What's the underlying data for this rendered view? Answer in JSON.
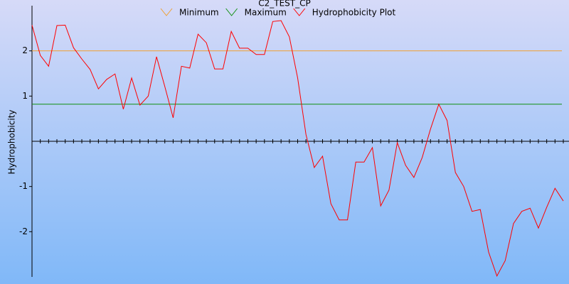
{
  "chart_data": {
    "type": "line",
    "title": "C2_TEST_CP",
    "y_label": "Hydrophobicity",
    "ylim": [
      -3,
      3
    ],
    "yticks": [
      -2,
      -1,
      1,
      2
    ],
    "reference_lines": [
      {
        "name": "Minimum",
        "color": "#f0a030",
        "value": 2
      },
      {
        "name": "Maximum",
        "color": "#109010",
        "value": 0.82
      }
    ],
    "series": [
      {
        "name": "Hydrophobicity Plot",
        "color": "#ff0000",
        "values": [
          2.57,
          1.9,
          1.66,
          2.56,
          2.57,
          2.07,
          1.82,
          1.59,
          1.16,
          1.37,
          1.49,
          0.71,
          1.4,
          0.8,
          1.0,
          1.87,
          1.21,
          0.52,
          1.66,
          1.62,
          2.37,
          2.18,
          1.6,
          1.6,
          2.43,
          2.06,
          2.06,
          1.92,
          1.92,
          2.65,
          2.67,
          2.31,
          1.4,
          0.15,
          -0.58,
          -0.33,
          -1.38,
          -1.74,
          -1.74,
          -0.46,
          -0.46,
          -0.14,
          -1.43,
          -1.08,
          -0.03,
          -0.53,
          -0.8,
          -0.36,
          0.27,
          0.82,
          0.46,
          -0.69,
          -1.0,
          -1.55,
          -1.51,
          -2.45,
          -2.98,
          -2.64,
          -1.82,
          -1.55,
          -1.48,
          -1.92,
          -1.46,
          -1.04,
          -1.32
        ]
      }
    ]
  }
}
